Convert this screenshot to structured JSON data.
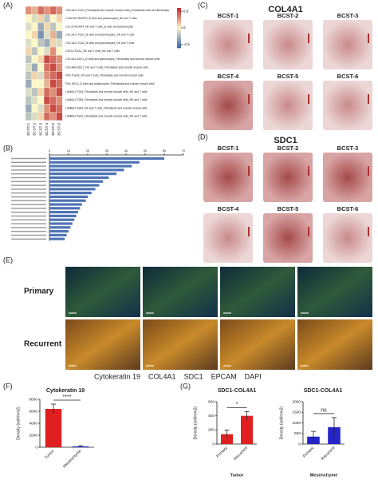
{
  "figure": {
    "panel_labels": [
      "(A)",
      "(B)",
      "(C)",
      "(D)",
      "(E)",
      "(F)",
      "(G)"
    ],
    "c": {
      "title": "COL4A1",
      "samples": [
        "BCST-1",
        "BCST-2",
        "BCST-3",
        "BCST-4",
        "BCST-5",
        "BCST-6"
      ]
    },
    "d": {
      "title": "SDC1",
      "samples": [
        "BCST-1",
        "BCST-2",
        "BCST-3",
        "BCST-4",
        "BCST-5",
        "BCST-6"
      ]
    },
    "e": {
      "rows": [
        "Primary",
        "Recurrent"
      ],
      "stains": [
        {
          "name": "Cytokeratin 19",
          "color": "#2ecc2e"
        },
        {
          "name": "COL4A1",
          "color": "#2ec4d8"
        },
        {
          "name": "SDC1",
          "color": "#f08a1c"
        },
        {
          "name": "EPCAM",
          "color": "#f2d21c"
        },
        {
          "name": "DAPI",
          "color": "#2b2bd0"
        }
      ]
    }
  },
  "chart_data": [
    {
      "type": "heatmap",
      "rows": [
        "COL4A1-ITGA1_Fibroblasts and smooth muscel cells_Endothelial cells and fibroblasts",
        "LGALS9-HAVCR2_B cells and plasmocytes_NK and T cells",
        "CCL19-ACKR4_NK and T cells_B cells and plasmocytes",
        "COL1A1-ITGA1_B cells and plasmocytes_NK and T cells",
        "COL1A2-ITGA2_B cells and plasmocytes_NK and T cells",
        "CDH1-ITGA1_NK and T cells_NK and T cells",
        "COL4A1-SDC1_B cells and plasmocytes_Fibroblasts and smooth muscel cells",
        "COL4A6-SDC1_NK and T cells_Fibroblasts and smooth muscel cells",
        "FN1-ITGA5_NK and T cells_Fibroblasts and smooth muscel cells",
        "FN1-SDC4_B cells and plasmocytes_Fibroblasts and smooth muscel cells",
        "LAMA4-ITGA6_Fibroblasts and smooth muscel cells_NK and T cells",
        "LAMA4-ITGB4_Fibroblasts and smooth muscel cells_NK and T cells",
        "LAMB4-ITGB4_NK and T cells_Fibroblasts and smooth muscel cells",
        "LAMB3-ITGA1_Fibroblasts and smooth muscel cells_NK and T cells"
      ],
      "columns": [
        "BCST-1",
        "BCST-2",
        "BCST-3",
        "BCST-4",
        "BCST-5",
        "BCST-6"
      ],
      "values": [
        [
          0.3,
          0.2,
          0.4,
          0.3,
          0.4,
          0.3
        ],
        [
          0.0,
          -0.1,
          0.1,
          -0.2,
          0.0,
          0.1
        ],
        [
          -0.1,
          0.0,
          -0.3,
          0.1,
          -0.2,
          0.0
        ],
        [
          0.0,
          0.1,
          -0.4,
          -0.1,
          0.2,
          -0.3
        ],
        [
          -0.1,
          0.0,
          -0.2,
          -0.3,
          0.1,
          -0.1
        ],
        [
          0.1,
          -0.2,
          0.0,
          -0.1,
          0.3,
          0.0
        ],
        [
          -0.2,
          0.0,
          0.1,
          0.5,
          0.4,
          0.3
        ],
        [
          -0.1,
          -0.3,
          0.0,
          0.4,
          0.5,
          0.3
        ],
        [
          -0.2,
          0.1,
          -0.1,
          0.3,
          0.4,
          0.5
        ],
        [
          -0.3,
          0.0,
          0.0,
          0.2,
          0.5,
          0.4
        ],
        [
          -0.1,
          -0.2,
          0.1,
          0.4,
          0.3,
          0.5
        ],
        [
          -0.2,
          -0.1,
          0.0,
          0.5,
          0.4,
          0.3
        ],
        [
          -0.3,
          0.0,
          -0.1,
          0.3,
          0.5,
          0.4
        ],
        [
          -0.2,
          -0.1,
          0.1,
          0.4,
          0.3,
          0.5
        ]
      ],
      "colors": [
        "#3a5fa8",
        "#fbf7c8",
        "#c0282a"
      ],
      "zlim": [
        -0.6,
        0.6
      ],
      "zticks": [
        0.5,
        0,
        -0.5
      ]
    },
    {
      "type": "hbar",
      "values": [
        60,
        47,
        43,
        39,
        35,
        31,
        28,
        26,
        24,
        22,
        20,
        19,
        17,
        16,
        15,
        14,
        13,
        12,
        11,
        10,
        9,
        8
      ],
      "color": "#4e74b4",
      "xlim": [
        0,
        70
      ],
      "xticks": [
        0,
        10,
        20,
        30,
        40,
        50,
        60,
        70
      ]
    },
    {
      "type": "bar",
      "title": "Cytokeratin 19",
      "ylabel": "Density (cell/mm2)",
      "categories": [
        "Tumor",
        "Mesenchyme"
      ],
      "values": [
        6400,
        150
      ],
      "errors": [
        800,
        100
      ],
      "colors": [
        "#e02020",
        "#2424c8"
      ],
      "ylim": [
        0,
        8000
      ],
      "yticks": [
        0,
        2000,
        4000,
        6000,
        8000
      ],
      "annotation": "****"
    },
    {
      "type": "bar",
      "title": "SDC1-COL4A1",
      "ylabel": "Density (cell/mm2)",
      "xlabel": "Tumor",
      "categories": [
        "Primary",
        "Recurrent"
      ],
      "values": [
        140,
        400
      ],
      "errors": [
        60,
        60
      ],
      "colors": [
        "#e02020",
        "#e02020"
      ],
      "ylim": [
        0,
        600
      ],
      "yticks": [
        0,
        200,
        400,
        600
      ],
      "annotation": "*"
    },
    {
      "type": "bar",
      "title": "SDC1-COL4A1",
      "ylabel": "Density (cell/mm2)",
      "xlabel": "Mesenchyme",
      "categories": [
        "Primary",
        "Recurrent"
      ],
      "values": [
        350,
        800
      ],
      "errors": [
        250,
        450
      ],
      "colors": [
        "#2424c8",
        "#2424c8"
      ],
      "ylim": [
        0,
        2000
      ],
      "yticks": [
        0,
        500,
        1000,
        1500,
        2000
      ],
      "annotation": "ns"
    }
  ]
}
